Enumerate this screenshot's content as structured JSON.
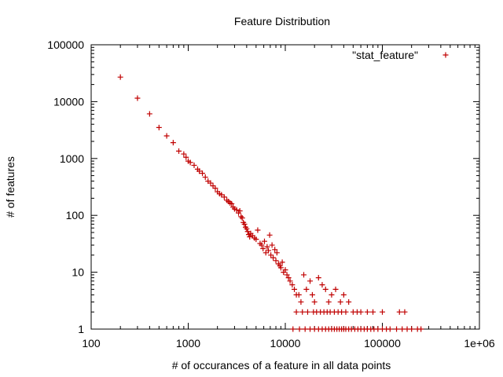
{
  "chart_data": {
    "type": "scatter",
    "title": "Feature Distribution",
    "xlabel": "# of occurances of a feature in all data points",
    "ylabel": "# of features",
    "xscale": "log",
    "yscale": "log",
    "xlim": [
      100,
      1000000
    ],
    "ylim": [
      1,
      100000
    ],
    "x_ticks": [
      100,
      1000,
      10000,
      100000,
      1000000
    ],
    "x_tick_labels": [
      "100",
      "1000",
      "10000",
      "100000",
      "1e+06"
    ],
    "y_ticks": [
      1,
      10,
      100,
      1000,
      10000,
      100000
    ],
    "y_tick_labels": [
      "1",
      "10",
      "100",
      "1000",
      "10000",
      "100000"
    ],
    "grid": false,
    "legend_position": "top-right",
    "marker": "plus",
    "color": "#c00000",
    "series": [
      {
        "name": "\"stat_feature\"",
        "points": [
          [
            200,
            27000
          ],
          [
            300,
            11500
          ],
          [
            400,
            6100
          ],
          [
            500,
            3500
          ],
          [
            600,
            2500
          ],
          [
            700,
            1900
          ],
          [
            800,
            1350
          ],
          [
            900,
            1200
          ],
          [
            950,
            1050
          ],
          [
            1000,
            900
          ],
          [
            1050,
            850
          ],
          [
            1150,
            760
          ],
          [
            1250,
            650
          ],
          [
            1300,
            600
          ],
          [
            1400,
            550
          ],
          [
            1500,
            470
          ],
          [
            1600,
            400
          ],
          [
            1700,
            370
          ],
          [
            1800,
            330
          ],
          [
            1900,
            300
          ],
          [
            2000,
            260
          ],
          [
            2100,
            240
          ],
          [
            2200,
            230
          ],
          [
            2350,
            210
          ],
          [
            2500,
            185
          ],
          [
            2600,
            175
          ],
          [
            2700,
            165
          ],
          [
            2800,
            160
          ],
          [
            2900,
            140
          ],
          [
            3000,
            130
          ],
          [
            3150,
            125
          ],
          [
            3300,
            110
          ],
          [
            3400,
            120
          ],
          [
            3500,
            95
          ],
          [
            3600,
            90
          ],
          [
            3700,
            75
          ],
          [
            3800,
            70
          ],
          [
            3900,
            62
          ],
          [
            4000,
            58
          ],
          [
            4100,
            52
          ],
          [
            4200,
            46
          ],
          [
            4300,
            42
          ],
          [
            4400,
            48
          ],
          [
            4600,
            44
          ],
          [
            4800,
            40
          ],
          [
            5000,
            38
          ],
          [
            5200,
            55
          ],
          [
            5500,
            32
          ],
          [
            5700,
            30
          ],
          [
            5900,
            26
          ],
          [
            6100,
            35
          ],
          [
            6300,
            22
          ],
          [
            6500,
            28
          ],
          [
            6700,
            24
          ],
          [
            6900,
            45
          ],
          [
            7100,
            20
          ],
          [
            7300,
            30
          ],
          [
            7500,
            18
          ],
          [
            7800,
            25
          ],
          [
            8000,
            16
          ],
          [
            8200,
            22
          ],
          [
            8500,
            14
          ],
          [
            8800,
            13
          ],
          [
            9000,
            12
          ],
          [
            9300,
            15
          ],
          [
            9600,
            10
          ],
          [
            10000,
            11
          ],
          [
            10400,
            9
          ],
          [
            10800,
            8
          ],
          [
            11200,
            7
          ],
          [
            11800,
            6
          ],
          [
            12400,
            5
          ],
          [
            13000,
            4
          ],
          [
            13800,
            4
          ],
          [
            14500,
            3
          ],
          [
            15500,
            9
          ],
          [
            16500,
            5
          ],
          [
            18000,
            7
          ],
          [
            19000,
            4
          ],
          [
            20000,
            3
          ],
          [
            22000,
            8
          ],
          [
            24000,
            6
          ],
          [
            26000,
            5
          ],
          [
            28000,
            3
          ],
          [
            30000,
            4
          ],
          [
            33000,
            5
          ],
          [
            37000,
            3
          ],
          [
            40000,
            4
          ],
          [
            45000,
            3
          ],
          [
            50000,
            2
          ],
          [
            55000,
            2
          ],
          [
            60000,
            2
          ],
          [
            70000,
            2
          ],
          [
            80000,
            2
          ],
          [
            100000,
            2
          ],
          [
            150000,
            2
          ],
          [
            170000,
            2
          ],
          [
            13000,
            2
          ],
          [
            15000,
            2
          ],
          [
            17000,
            2
          ],
          [
            19500,
            2
          ],
          [
            21000,
            2
          ],
          [
            23000,
            2
          ],
          [
            25000,
            2
          ],
          [
            27000,
            2
          ],
          [
            29000,
            2
          ],
          [
            32000,
            2
          ],
          [
            35000,
            2
          ],
          [
            38000,
            2
          ],
          [
            42000,
            2
          ],
          [
            12000,
            1
          ],
          [
            14000,
            1
          ],
          [
            16000,
            1
          ],
          [
            18000,
            1
          ],
          [
            20000,
            1
          ],
          [
            22000,
            1
          ],
          [
            24000,
            1
          ],
          [
            26000,
            1
          ],
          [
            28000,
            1
          ],
          [
            30000,
            1
          ],
          [
            32000,
            1
          ],
          [
            34000,
            1
          ],
          [
            36000,
            1
          ],
          [
            38000,
            1
          ],
          [
            40000,
            1
          ],
          [
            42000,
            1
          ],
          [
            45000,
            1
          ],
          [
            48000,
            1
          ],
          [
            52000,
            1
          ],
          [
            56000,
            1
          ],
          [
            60000,
            1
          ],
          [
            65000,
            1
          ],
          [
            70000,
            1
          ],
          [
            76000,
            1
          ],
          [
            82000,
            1
          ],
          [
            90000,
            1
          ],
          [
            100000,
            1
          ],
          [
            110000,
            1
          ],
          [
            120000,
            1
          ],
          [
            140000,
            1
          ],
          [
            160000,
            1
          ],
          [
            180000,
            1
          ],
          [
            200000,
            1
          ],
          [
            230000,
            1
          ],
          [
            250000,
            1
          ]
        ]
      }
    ]
  }
}
